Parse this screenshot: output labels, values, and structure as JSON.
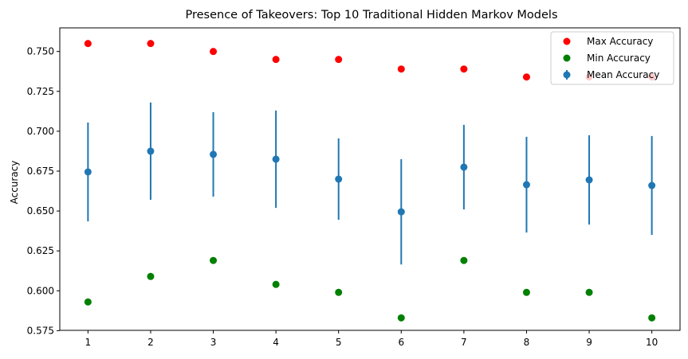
{
  "chart_data": {
    "type": "scatter",
    "title": "Presence of Takeovers: Top 10 Traditional Hidden Markov Models",
    "xlabel": "",
    "ylabel": "Accuracy",
    "x": [
      1,
      2,
      3,
      4,
      5,
      6,
      7,
      8,
      9,
      10
    ],
    "xlim": [
      0.55,
      10.45
    ],
    "ylim": [
      0.5752,
      0.7648
    ],
    "yticks": [
      0.575,
      0.6,
      0.625,
      0.65,
      0.675,
      0.7,
      0.725,
      0.75
    ],
    "ytick_labels": [
      "0.575",
      "0.600",
      "0.625",
      "0.650",
      "0.675",
      "0.700",
      "0.725",
      "0.750"
    ],
    "xtick_labels": [
      "1",
      "2",
      "3",
      "4",
      "5",
      "6",
      "7",
      "8",
      "9",
      "10"
    ],
    "grid": false,
    "legend_position": "top-right",
    "series": [
      {
        "name": "Max Accuracy",
        "kind": "scatter",
        "color": "#ff0000",
        "values": [
          0.755,
          0.755,
          0.75,
          0.745,
          0.745,
          0.739,
          0.739,
          0.734,
          0.734,
          0.734
        ]
      },
      {
        "name": "Min Accuracy",
        "kind": "scatter",
        "color": "#008000",
        "values": [
          0.593,
          0.609,
          0.619,
          0.604,
          0.599,
          0.583,
          0.619,
          0.599,
          0.599,
          0.583
        ]
      },
      {
        "name": "Mean Accuracy",
        "kind": "errorbar",
        "color": "#1f77b4",
        "values": [
          0.6745,
          0.6875,
          0.6855,
          0.6825,
          0.67,
          0.6495,
          0.6775,
          0.6665,
          0.6695,
          0.666
        ],
        "errors": [
          0.031,
          0.0305,
          0.0265,
          0.0305,
          0.0255,
          0.033,
          0.0265,
          0.03,
          0.028,
          0.031
        ]
      }
    ]
  }
}
